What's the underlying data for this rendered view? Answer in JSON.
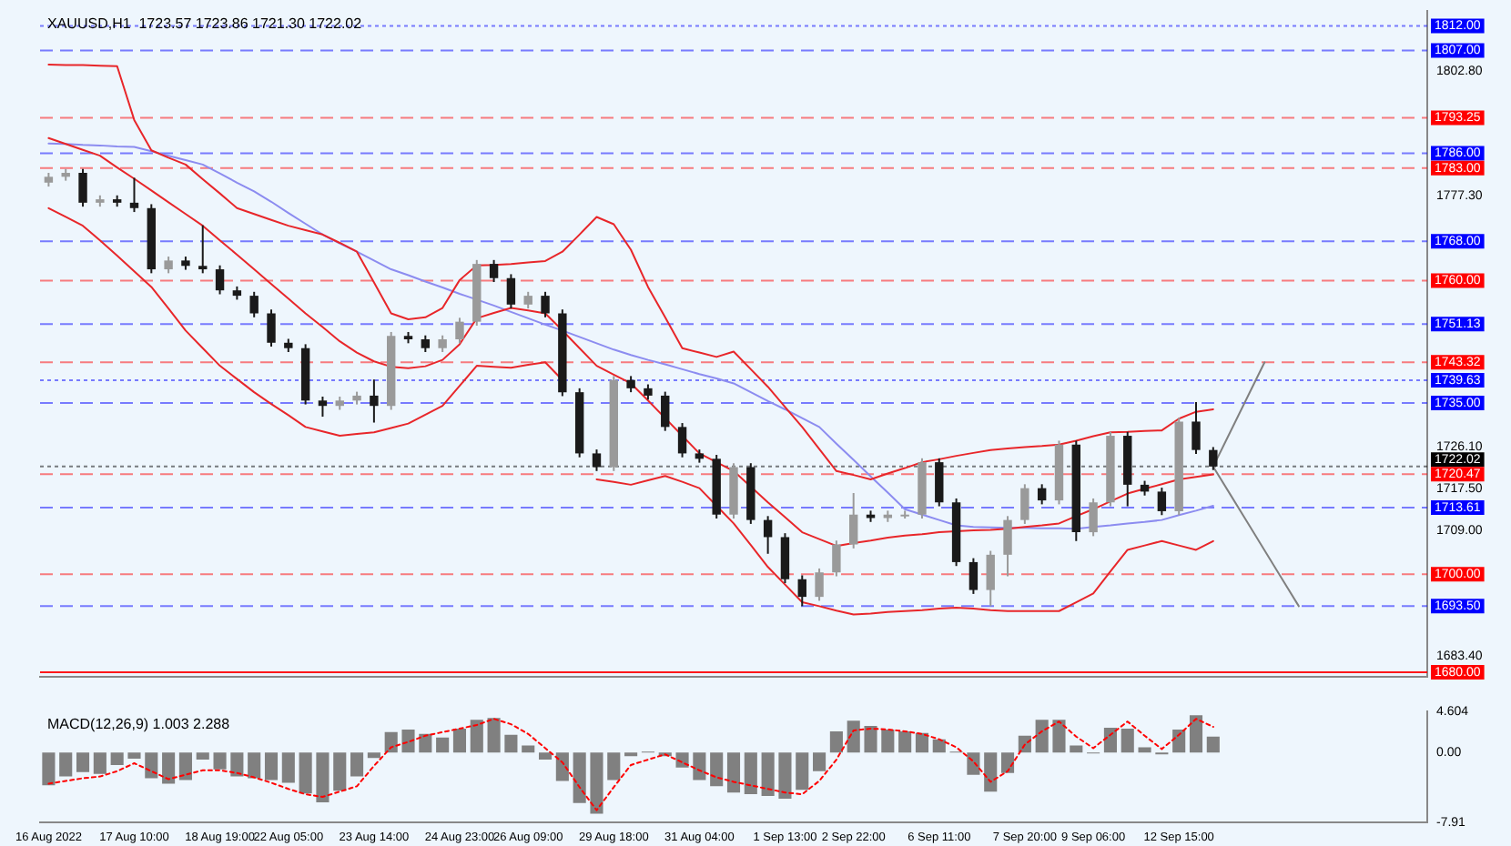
{
  "chart_data": [
    {
      "type": "candlestick",
      "title": "XAUUSD,H1  1723.57 1723.86 1721.30 1722.02",
      "ylim": [
        1679,
        1815
      ],
      "yticks": [
        {
          "value": 1802.8,
          "label": "1802.80"
        },
        {
          "value": 1777.3,
          "label": "1777.30"
        },
        {
          "value": 1726.1,
          "label": "1726.10"
        },
        {
          "value": 1717.5,
          "label": "1717.50"
        },
        {
          "value": 1709,
          "label": "1709.00"
        },
        {
          "value": 1683.4,
          "label": "1683.40"
        }
      ],
      "categories": [
        null,
        null,
        null,
        null,
        null,
        null,
        null,
        null,
        null,
        null,
        null,
        null,
        null,
        null,
        null,
        null,
        null,
        null,
        null,
        null,
        null,
        null,
        null,
        null,
        null,
        null,
        null,
        null,
        null,
        null,
        null,
        null,
        null,
        null,
        null,
        null,
        null,
        null,
        null,
        null,
        null,
        null,
        null,
        null,
        null,
        null,
        null,
        null,
        null,
        null,
        null,
        null,
        null,
        null,
        null,
        null,
        null,
        null,
        null,
        null,
        null,
        null,
        null,
        null,
        null,
        null,
        null,
        null,
        null,
        null,
        null,
        null,
        null,
        null,
        null,
        null,
        null,
        null,
        null,
        null,
        null
      ],
      "ohlc": [
        [
          1780.0,
          1782.0,
          1779.2,
          1781.2
        ],
        [
          1781.2,
          1782.8,
          1780.4,
          1782.0
        ],
        [
          1782.0,
          1782.8,
          1775.1,
          1775.9
        ],
        [
          1775.9,
          1777.4,
          1775.1,
          1776.6
        ],
        [
          1776.6,
          1777.4,
          1775.1,
          1775.9
        ],
        [
          1775.9,
          1781.0,
          1774.0,
          1774.8
        ],
        [
          1774.8,
          1775.6,
          1761.5,
          1762.3
        ],
        [
          1762.3,
          1764.9,
          1761.5,
          1764.1
        ],
        [
          1764.1,
          1764.9,
          1762.2,
          1763.0
        ],
        [
          1763.0,
          1771.3,
          1761.5,
          1762.3
        ],
        [
          1762.3,
          1763.1,
          1757.2,
          1758.0
        ],
        [
          1758.0,
          1758.8,
          1756.1,
          1756.9
        ],
        [
          1756.9,
          1757.7,
          1752.5,
          1753.3
        ],
        [
          1753.3,
          1754.1,
          1746.5,
          1747.3
        ],
        [
          1747.3,
          1748.1,
          1745.4,
          1746.2
        ],
        [
          1746.2,
          1747.0,
          1734.7,
          1735.5
        ],
        [
          1735.5,
          1736.3,
          1732.2,
          1734.4
        ],
        [
          1734.4,
          1736.3,
          1733.6,
          1735.5
        ],
        [
          1735.5,
          1737.3,
          1734.7,
          1736.5
        ],
        [
          1736.5,
          1739.8,
          1731.0,
          1734.4
        ],
        [
          1734.4,
          1749.5,
          1733.6,
          1748.7
        ],
        [
          1748.7,
          1749.5,
          1747.2,
          1748.0
        ],
        [
          1748.0,
          1748.8,
          1745.4,
          1746.2
        ],
        [
          1746.2,
          1748.8,
          1745.4,
          1748.0
        ],
        [
          1748.0,
          1752.4,
          1747.2,
          1751.6
        ],
        [
          1751.6,
          1764.2,
          1750.8,
          1763.4
        ],
        [
          1763.4,
          1764.2,
          1759.7,
          1760.5
        ],
        [
          1760.5,
          1761.3,
          1754.3,
          1755.1
        ],
        [
          1755.1,
          1757.7,
          1754.3,
          1756.9
        ],
        [
          1756.9,
          1757.7,
          1752.5,
          1753.3
        ],
        [
          1753.3,
          1754.1,
          1736.4,
          1737.2
        ],
        [
          1737.2,
          1738.0,
          1723.9,
          1724.7
        ],
        [
          1724.7,
          1725.5,
          1721.1,
          1721.9
        ],
        [
          1721.9,
          1740.5,
          1721.1,
          1739.7
        ],
        [
          1739.7,
          1740.5,
          1737.2,
          1738.0
        ],
        [
          1738.0,
          1738.8,
          1735.7,
          1736.5
        ],
        [
          1736.5,
          1737.3,
          1729.3,
          1730.1
        ],
        [
          1730.1,
          1730.9,
          1723.9,
          1724.7
        ],
        [
          1724.7,
          1725.5,
          1722.8,
          1723.6
        ],
        [
          1723.6,
          1724.4,
          1711.4,
          1712.2
        ],
        [
          1712.2,
          1722.7,
          1711.4,
          1721.9
        ],
        [
          1721.9,
          1722.7,
          1710.3,
          1711.1
        ],
        [
          1711.1,
          1711.9,
          1704.2,
          1707.6
        ],
        [
          1707.6,
          1708.4,
          1698.2,
          1699.0
        ],
        [
          1699.0,
          1699.8,
          1693.5,
          1695.4
        ],
        [
          1695.4,
          1701.2,
          1694.6,
          1700.4
        ],
        [
          1700.4,
          1706.9,
          1699.6,
          1706.1
        ],
        [
          1706.1,
          1716.6,
          1705.3,
          1712.2
        ],
        [
          1712.2,
          1713.0,
          1710.7,
          1711.5
        ],
        [
          1711.5,
          1713.0,
          1710.7,
          1712.2
        ],
        [
          1712.2,
          1713.0,
          1711.4,
          1712.2
        ],
        [
          1712.2,
          1723.7,
          1711.4,
          1722.9
        ],
        [
          1722.9,
          1723.7,
          1713.9,
          1714.7
        ],
        [
          1714.7,
          1715.5,
          1701.7,
          1702.5
        ],
        [
          1702.5,
          1703.3,
          1696.0,
          1696.8
        ],
        [
          1696.8,
          1704.8,
          1693.5,
          1704.0
        ],
        [
          1704.0,
          1711.9,
          1699.6,
          1711.1
        ],
        [
          1711.1,
          1718.4,
          1710.3,
          1717.6
        ],
        [
          1717.6,
          1718.4,
          1714.3,
          1715.1
        ],
        [
          1715.1,
          1727.3,
          1714.3,
          1726.5
        ],
        [
          1726.5,
          1727.3,
          1706.8,
          1708.6
        ],
        [
          1708.6,
          1715.5,
          1707.8,
          1714.7
        ],
        [
          1714.7,
          1729.1,
          1713.9,
          1728.3
        ],
        [
          1728.3,
          1729.1,
          1713.9,
          1718.3
        ],
        [
          1718.3,
          1719.1,
          1716.1,
          1716.9
        ],
        [
          1716.9,
          1717.7,
          1712.1,
          1712.9
        ],
        [
          1712.9,
          1732.0,
          1712.1,
          1731.2
        ],
        [
          1731.2,
          1735.2,
          1724.6,
          1725.4
        ],
        [
          1725.4,
          1726.0,
          1721.3,
          1722.02
        ],
        null,
        null,
        null,
        null,
        null,
        null,
        null,
        null,
        null,
        null,
        null,
        null
      ],
      "series": [
        {
          "type": "line",
          "color": "#e8262a",
          "values": [
            1804.1,
            1804.0,
            1804.0,
            1803.9,
            1803.8,
            1792.8,
            1786.6,
            1785.1,
            1783.7,
            1780.7,
            1777.8,
            1774.8,
            1773.6,
            1772.4,
            1771.2,
            1770.3,
            1769.4,
            1767.7,
            1765.9,
            1759.6,
            1753.3,
            1752.1,
            1752.5,
            1754.4,
            1760.1,
            1763.1,
            1763.2,
            1763.4,
            1763.7,
            1764.0,
            1765.9,
            1769.4,
            1773.0,
            1771.5,
            1766.3,
            1758.7,
            1752.5,
            1746.2,
            1745.3,
            1744.4,
            1745.5,
            1741.9,
            1738.3,
            1734.2,
            1730.1,
            1725.6,
            1721.1,
            1720.3,
            1719.4,
            1720.6,
            1721.7,
            1722.9,
            1723.5,
            1724.2,
            1724.8,
            1725.4,
            1725.7,
            1726.0,
            1726.2,
            1726.5,
            1727.3,
            1728.2,
            1729.0,
            1729.1,
            1729.3,
            1729.4,
            1731.8,
            1733.2,
            1733.7,
            null,
            null,
            null,
            null,
            null,
            null,
            null,
            null,
            null,
            null,
            null,
            null
          ]
        },
        {
          "type": "line",
          "color": "#e8262a",
          "values": [
            1789.1,
            1787.9,
            1786.7,
            1785.5,
            1783.1,
            1780.8,
            1778.4,
            1776.0,
            1773.6,
            1771.2,
            1768.2,
            1765.3,
            1762.3,
            1759.3,
            1756.3,
            1753.3,
            1750.5,
            1747.6,
            1745.3,
            1743.5,
            1742.4,
            1742.1,
            1742.5,
            1743.8,
            1747.0,
            1752.3,
            1753.4,
            1754.4,
            1753.9,
            1753.3,
            1749.8,
            1746.2,
            1742.6,
            1740.8,
            1739.0,
            1735.5,
            1731.9,
            1728.3,
            1724.7,
            1722.9,
            1721.1,
            1717.9,
            1714.7,
            1711.7,
            1708.6,
            1707.2,
            1705.8,
            1706.4,
            1706.9,
            1707.5,
            1707.9,
            1708.2,
            1708.6,
            1708.8,
            1709.0,
            1709.1,
            1709.3,
            1709.7,
            1710.0,
            1710.4,
            1711.9,
            1713.3,
            1714.9,
            1716.5,
            1717.5,
            1718.4,
            1719.4,
            1719.9,
            1720.4,
            null,
            null,
            null,
            null,
            null,
            null,
            null,
            null,
            null,
            null,
            null,
            null
          ]
        },
        {
          "type": "line",
          "color": "#e8262a",
          "values": [
            1774.8,
            1773.0,
            1771.2,
            1768.2,
            1765.1,
            1761.9,
            1758.7,
            1754.3,
            1749.8,
            1746.2,
            1742.6,
            1739.9,
            1737.2,
            1734.8,
            1732.5,
            1730.1,
            1729.2,
            1728.3,
            1728.7,
            1729.0,
            1729.9,
            1730.8,
            1732.6,
            1734.4,
            1738.5,
            1742.6,
            1742.4,
            1742.2,
            1742.8,
            1743.3,
            1739.7,
            null,
            1719.4,
            1718.9,
            1718.3,
            1719.2,
            1720.1,
            1718.9,
            1717.6,
            1714.0,
            1710.4,
            1706.0,
            1701.5,
            1697.9,
            1694.3,
            1693.5,
            1692.6,
            1691.8,
            1692.0,
            1692.3,
            1692.5,
            1692.7,
            1693.0,
            1693.2,
            1693.0,
            1692.7,
            1692.5,
            1692.5,
            1692.5,
            1692.5,
            1694.3,
            1696.1,
            1700.6,
            1705.0,
            1705.9,
            1706.8,
            1705.9,
            1705.0,
            1706.8,
            null,
            null,
            null,
            null,
            null,
            null,
            null,
            null,
            null,
            null,
            null,
            null
          ]
        },
        {
          "type": "line",
          "color": "#8c8cf0",
          "values": [
            1788.0,
            1787.9,
            1787.7,
            1787.6,
            1787.4,
            1787.3,
            1786.4,
            1785.5,
            1784.6,
            1783.7,
            1781.9,
            1780.0,
            1778.2,
            1776.1,
            1773.8,
            1771.6,
            1769.4,
            1767.6,
            1765.9,
            1764.1,
            1762.3,
            1761.1,
            1759.8,
            1758.6,
            1757.3,
            1756.1,
            1754.9,
            1753.6,
            1752.3,
            1751.0,
            1749.8,
            1748.5,
            1747.2,
            1745.9,
            1744.8,
            1743.8,
            1742.9,
            1741.9,
            1740.9,
            1740.0,
            1739.0,
            1737.2,
            1735.4,
            1733.7,
            1731.9,
            1730.1,
            1726.7,
            1723.4,
            1720.0,
            1716.7,
            1713.3,
            1712.2,
            1711.1,
            1710.0,
            1709.7,
            1709.6,
            1709.5,
            1709.5,
            1709.4,
            1709.4,
            1709.3,
            1709.7,
            1710.0,
            1710.4,
            1710.7,
            1711.1,
            1712.1,
            1713.0,
            1714.0,
            null,
            null,
            null,
            null,
            null,
            null,
            null,
            null,
            null,
            null,
            null,
            null
          ]
        },
        {
          "type": "line",
          "color": "#808080",
          "values": [
            null,
            null,
            null,
            null,
            null,
            null,
            null,
            null,
            null,
            null,
            null,
            null,
            null,
            null,
            null,
            null,
            null,
            null,
            null,
            null,
            null,
            null,
            null,
            null,
            null,
            null,
            null,
            null,
            null,
            null,
            null,
            null,
            null,
            null,
            null,
            null,
            null,
            null,
            null,
            null,
            null,
            null,
            null,
            null,
            null,
            null,
            null,
            null,
            null,
            null,
            null,
            null,
            null,
            null,
            null,
            null,
            null,
            null,
            null,
            null,
            null,
            null,
            null,
            null,
            null,
            null,
            null,
            null,
            1722.0,
            1729.1,
            1736.2,
            1743.3,
            null,
            null,
            null,
            null,
            null,
            null,
            null,
            null,
            null
          ]
        },
        {
          "type": "line",
          "color": "#808080",
          "values": [
            null,
            null,
            null,
            null,
            null,
            null,
            null,
            null,
            null,
            null,
            null,
            null,
            null,
            null,
            null,
            null,
            null,
            null,
            null,
            null,
            null,
            null,
            null,
            null,
            null,
            null,
            null,
            null,
            null,
            null,
            null,
            null,
            null,
            null,
            null,
            null,
            null,
            null,
            null,
            null,
            null,
            null,
            null,
            null,
            null,
            null,
            null,
            null,
            null,
            null,
            null,
            null,
            null,
            null,
            null,
            null,
            null,
            null,
            null,
            null,
            null,
            null,
            null,
            null,
            null,
            null,
            null,
            null,
            1722.0,
            1716.3,
            1710.6,
            1704.9,
            1699.2,
            1693.5,
            null,
            null,
            null,
            null,
            null,
            null,
            null
          ]
        }
      ],
      "ref_lines": [
        {
          "axis": "y",
          "value": 1812.0,
          "label": "1812.00",
          "color": "#0000ff",
          "line_style": "dotted"
        },
        {
          "axis": "y",
          "value": 1807.0,
          "label": "1807.00",
          "color": "#0000ff",
          "line_style": "dashed"
        },
        {
          "axis": "y",
          "value": 1793.25,
          "label": "1793.25",
          "color": "#ff0000",
          "line_style": "dashed"
        },
        {
          "axis": "y",
          "value": 1786.0,
          "label": "1786.00",
          "color": "#0000ff",
          "line_style": "dashed"
        },
        {
          "axis": "y",
          "value": 1783.0,
          "label": "1783.00",
          "color": "#ff0000",
          "line_style": "dashed"
        },
        {
          "axis": "y",
          "value": 1768.0,
          "label": "1768.00",
          "color": "#0000ff",
          "line_style": "dashed"
        },
        {
          "axis": "y",
          "value": 1760.0,
          "label": "1760.00",
          "color": "#ff0000",
          "line_style": "dashed"
        },
        {
          "axis": "y",
          "value": 1751.13,
          "label": "1751.13",
          "color": "#0000ff",
          "line_style": "dashed"
        },
        {
          "axis": "y",
          "value": 1743.32,
          "label": "1743.32",
          "color": "#ff0000",
          "line_style": "dashed"
        },
        {
          "axis": "y",
          "value": 1739.63,
          "label": "1739.63",
          "color": "#0000ff",
          "line_style": "dotted"
        },
        {
          "axis": "y",
          "value": 1735.0,
          "label": "1735.00",
          "color": "#0000ff",
          "line_style": "dashed"
        },
        {
          "axis": "y",
          "value": 1722.02,
          "label": "1722.02",
          "color": "#000000",
          "line_style": "dotted"
        },
        {
          "axis": "y",
          "value": 1720.47,
          "label": "1720.47",
          "color": "#ff0000",
          "line_style": "dashed"
        },
        {
          "axis": "y",
          "value": 1713.61,
          "label": "1713.61",
          "color": "#0000ff",
          "line_style": "dashed"
        },
        {
          "axis": "y",
          "value": 1700.0,
          "label": "1700.00",
          "color": "#ff0000",
          "line_style": "dashed"
        },
        {
          "axis": "y",
          "value": 1693.5,
          "label": "1693.50",
          "color": "#0000ff",
          "line_style": "dashed"
        },
        {
          "axis": "y",
          "value": 1680.0,
          "label": "1680.00",
          "color": "#ff0000",
          "line_style": "solid"
        }
      ]
    },
    {
      "type": "bar",
      "title": "MACD(12,26,9) 1.003 2.288",
      "ylim": [
        -7.91,
        4.604
      ],
      "yticks": [
        4.604,
        {
          "value": 0,
          "label": "0.00"
        },
        -7.91
      ],
      "categories": [
        "16 Aug 2022",
        null,
        null,
        null,
        null,
        "17 Aug 10:00",
        null,
        null,
        null,
        null,
        "18 Aug 19:00",
        null,
        null,
        null,
        "22 Aug 05:00",
        null,
        null,
        null,
        null,
        "23 Aug 14:00",
        null,
        null,
        null,
        null,
        "24 Aug 23:00",
        null,
        null,
        null,
        "26 Aug 09:00",
        null,
        null,
        null,
        null,
        "29 Aug 18:00",
        null,
        null,
        null,
        null,
        "31 Aug 04:00",
        null,
        null,
        null,
        null,
        "1 Sep 13:00",
        null,
        null,
        null,
        "2 Sep 22:00",
        null,
        null,
        null,
        null,
        "6 Sep 11:00",
        null,
        null,
        null,
        null,
        "7 Sep 20:00",
        null,
        null,
        null,
        "9 Sep 06:00",
        null,
        null,
        null,
        null,
        "12 Sep 15:00",
        null,
        null,
        null,
        null,
        null,
        null,
        null,
        null,
        null,
        null,
        null,
        null,
        null,
        null
      ],
      "series": [
        {
          "type": "bar",
          "color": "#808080",
          "values": [
            -3.7,
            -2.7,
            -2.2,
            -2.4,
            -1.4,
            -0.7,
            -2.9,
            -3.5,
            -3.1,
            -0.8,
            -1.9,
            -2.7,
            -2.9,
            -3.1,
            -3.4,
            -4.6,
            -5.6,
            -4.3,
            -2.7,
            -0.6,
            2.3,
            2.6,
            2.1,
            1.7,
            2.7,
            3.7,
            3.9,
            2.0,
            0.8,
            -0.8,
            -3.2,
            -5.7,
            -6.9,
            -3.1,
            -0.4,
            0.1,
            -0.4,
            -1.7,
            -3.1,
            -3.8,
            -4.5,
            -4.7,
            -4.9,
            -5.2,
            -4.2,
            -2.1,
            2.4,
            3.6,
            3.0,
            2.6,
            2.4,
            2.2,
            1.5,
            0.1,
            -2.5,
            -4.4,
            -2.3,
            1.9,
            3.7,
            3.7,
            0.8,
            -0.1,
            2.8,
            2.7,
            0.6,
            -0.2,
            2.6,
            4.2,
            1.8,
            null,
            null,
            null,
            null,
            null,
            null,
            null,
            null,
            null,
            null,
            null,
            null
          ]
        },
        {
          "type": "line",
          "color": "#ff0000",
          "line_style": "dotted",
          "values": [
            -3.5,
            -3.2,
            -2.9,
            -2.7,
            -2.1,
            -1.2,
            -2.1,
            -3.0,
            -2.5,
            -2.0,
            -2.0,
            -2.3,
            -2.8,
            -3.4,
            -4.1,
            -4.7,
            -5.0,
            -4.4,
            -3.8,
            -1.5,
            0.6,
            1.2,
            1.9,
            2.3,
            2.7,
            3.1,
            3.8,
            3.2,
            2.1,
            0.5,
            -1.1,
            -3.9,
            -6.5,
            -3.9,
            -1.4,
            -0.8,
            -0.2,
            -1.1,
            -2.0,
            -2.8,
            -3.3,
            -3.7,
            -4.1,
            -4.5,
            -4.7,
            -3.2,
            -0.8,
            2.5,
            2.7,
            2.6,
            2.4,
            2.1,
            1.5,
            0.6,
            -1.0,
            -3.3,
            -2.1,
            0.9,
            2.4,
            3.5,
            1.8,
            0.5,
            2.0,
            3.5,
            1.9,
            0.4,
            2.0,
            3.8,
            2.9,
            null,
            null,
            null,
            null,
            null,
            null,
            null,
            null,
            null,
            null,
            null,
            null
          ]
        }
      ]
    }
  ]
}
